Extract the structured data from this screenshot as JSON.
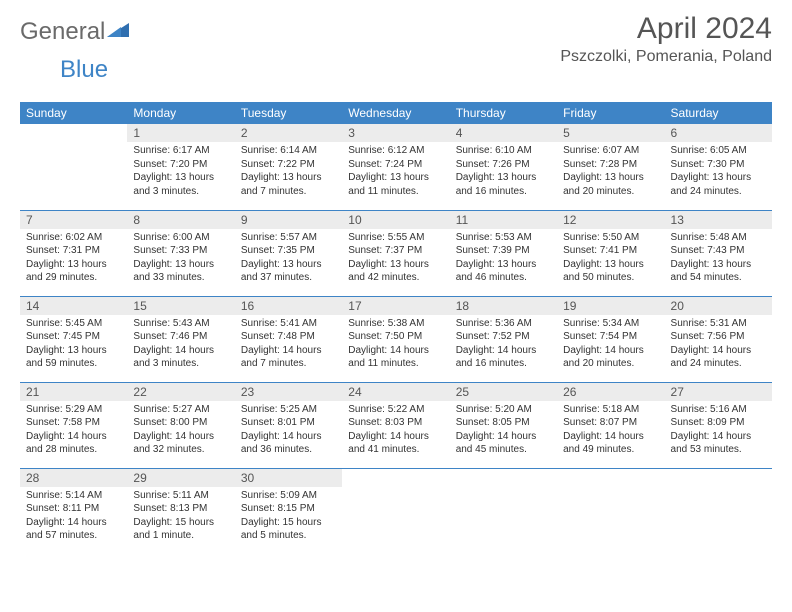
{
  "logo": {
    "text1": "General",
    "text2": "Blue"
  },
  "title": "April 2024",
  "location": "Pszczolki, Pomerania, Poland",
  "colors": {
    "header_bg": "#3e84c6",
    "header_fg": "#ffffff",
    "daynum_bg": "#ececec",
    "text": "#333333",
    "title": "#555555"
  },
  "typography": {
    "title_fontsize": 30,
    "location_fontsize": 16,
    "dayhead_fontsize": 12,
    "daynum_fontsize": 12,
    "body_fontsize": 10
  },
  "day_headers": [
    "Sunday",
    "Monday",
    "Tuesday",
    "Wednesday",
    "Thursday",
    "Friday",
    "Saturday"
  ],
  "weeks": [
    [
      {
        "n": "",
        "sr": "",
        "ss": "",
        "dl": ""
      },
      {
        "n": "1",
        "sr": "Sunrise: 6:17 AM",
        "ss": "Sunset: 7:20 PM",
        "dl": "Daylight: 13 hours and 3 minutes."
      },
      {
        "n": "2",
        "sr": "Sunrise: 6:14 AM",
        "ss": "Sunset: 7:22 PM",
        "dl": "Daylight: 13 hours and 7 minutes."
      },
      {
        "n": "3",
        "sr": "Sunrise: 6:12 AM",
        "ss": "Sunset: 7:24 PM",
        "dl": "Daylight: 13 hours and 11 minutes."
      },
      {
        "n": "4",
        "sr": "Sunrise: 6:10 AM",
        "ss": "Sunset: 7:26 PM",
        "dl": "Daylight: 13 hours and 16 minutes."
      },
      {
        "n": "5",
        "sr": "Sunrise: 6:07 AM",
        "ss": "Sunset: 7:28 PM",
        "dl": "Daylight: 13 hours and 20 minutes."
      },
      {
        "n": "6",
        "sr": "Sunrise: 6:05 AM",
        "ss": "Sunset: 7:30 PM",
        "dl": "Daylight: 13 hours and 24 minutes."
      }
    ],
    [
      {
        "n": "7",
        "sr": "Sunrise: 6:02 AM",
        "ss": "Sunset: 7:31 PM",
        "dl": "Daylight: 13 hours and 29 minutes."
      },
      {
        "n": "8",
        "sr": "Sunrise: 6:00 AM",
        "ss": "Sunset: 7:33 PM",
        "dl": "Daylight: 13 hours and 33 minutes."
      },
      {
        "n": "9",
        "sr": "Sunrise: 5:57 AM",
        "ss": "Sunset: 7:35 PM",
        "dl": "Daylight: 13 hours and 37 minutes."
      },
      {
        "n": "10",
        "sr": "Sunrise: 5:55 AM",
        "ss": "Sunset: 7:37 PM",
        "dl": "Daylight: 13 hours and 42 minutes."
      },
      {
        "n": "11",
        "sr": "Sunrise: 5:53 AM",
        "ss": "Sunset: 7:39 PM",
        "dl": "Daylight: 13 hours and 46 minutes."
      },
      {
        "n": "12",
        "sr": "Sunrise: 5:50 AM",
        "ss": "Sunset: 7:41 PM",
        "dl": "Daylight: 13 hours and 50 minutes."
      },
      {
        "n": "13",
        "sr": "Sunrise: 5:48 AM",
        "ss": "Sunset: 7:43 PM",
        "dl": "Daylight: 13 hours and 54 minutes."
      }
    ],
    [
      {
        "n": "14",
        "sr": "Sunrise: 5:45 AM",
        "ss": "Sunset: 7:45 PM",
        "dl": "Daylight: 13 hours and 59 minutes."
      },
      {
        "n": "15",
        "sr": "Sunrise: 5:43 AM",
        "ss": "Sunset: 7:46 PM",
        "dl": "Daylight: 14 hours and 3 minutes."
      },
      {
        "n": "16",
        "sr": "Sunrise: 5:41 AM",
        "ss": "Sunset: 7:48 PM",
        "dl": "Daylight: 14 hours and 7 minutes."
      },
      {
        "n": "17",
        "sr": "Sunrise: 5:38 AM",
        "ss": "Sunset: 7:50 PM",
        "dl": "Daylight: 14 hours and 11 minutes."
      },
      {
        "n": "18",
        "sr": "Sunrise: 5:36 AM",
        "ss": "Sunset: 7:52 PM",
        "dl": "Daylight: 14 hours and 16 minutes."
      },
      {
        "n": "19",
        "sr": "Sunrise: 5:34 AM",
        "ss": "Sunset: 7:54 PM",
        "dl": "Daylight: 14 hours and 20 minutes."
      },
      {
        "n": "20",
        "sr": "Sunrise: 5:31 AM",
        "ss": "Sunset: 7:56 PM",
        "dl": "Daylight: 14 hours and 24 minutes."
      }
    ],
    [
      {
        "n": "21",
        "sr": "Sunrise: 5:29 AM",
        "ss": "Sunset: 7:58 PM",
        "dl": "Daylight: 14 hours and 28 minutes."
      },
      {
        "n": "22",
        "sr": "Sunrise: 5:27 AM",
        "ss": "Sunset: 8:00 PM",
        "dl": "Daylight: 14 hours and 32 minutes."
      },
      {
        "n": "23",
        "sr": "Sunrise: 5:25 AM",
        "ss": "Sunset: 8:01 PM",
        "dl": "Daylight: 14 hours and 36 minutes."
      },
      {
        "n": "24",
        "sr": "Sunrise: 5:22 AM",
        "ss": "Sunset: 8:03 PM",
        "dl": "Daylight: 14 hours and 41 minutes."
      },
      {
        "n": "25",
        "sr": "Sunrise: 5:20 AM",
        "ss": "Sunset: 8:05 PM",
        "dl": "Daylight: 14 hours and 45 minutes."
      },
      {
        "n": "26",
        "sr": "Sunrise: 5:18 AM",
        "ss": "Sunset: 8:07 PM",
        "dl": "Daylight: 14 hours and 49 minutes."
      },
      {
        "n": "27",
        "sr": "Sunrise: 5:16 AM",
        "ss": "Sunset: 8:09 PM",
        "dl": "Daylight: 14 hours and 53 minutes."
      }
    ],
    [
      {
        "n": "28",
        "sr": "Sunrise: 5:14 AM",
        "ss": "Sunset: 8:11 PM",
        "dl": "Daylight: 14 hours and 57 minutes."
      },
      {
        "n": "29",
        "sr": "Sunrise: 5:11 AM",
        "ss": "Sunset: 8:13 PM",
        "dl": "Daylight: 15 hours and 1 minute."
      },
      {
        "n": "30",
        "sr": "Sunrise: 5:09 AM",
        "ss": "Sunset: 8:15 PM",
        "dl": "Daylight: 15 hours and 5 minutes."
      },
      {
        "n": "",
        "sr": "",
        "ss": "",
        "dl": ""
      },
      {
        "n": "",
        "sr": "",
        "ss": "",
        "dl": ""
      },
      {
        "n": "",
        "sr": "",
        "ss": "",
        "dl": ""
      },
      {
        "n": "",
        "sr": "",
        "ss": "",
        "dl": ""
      }
    ]
  ]
}
